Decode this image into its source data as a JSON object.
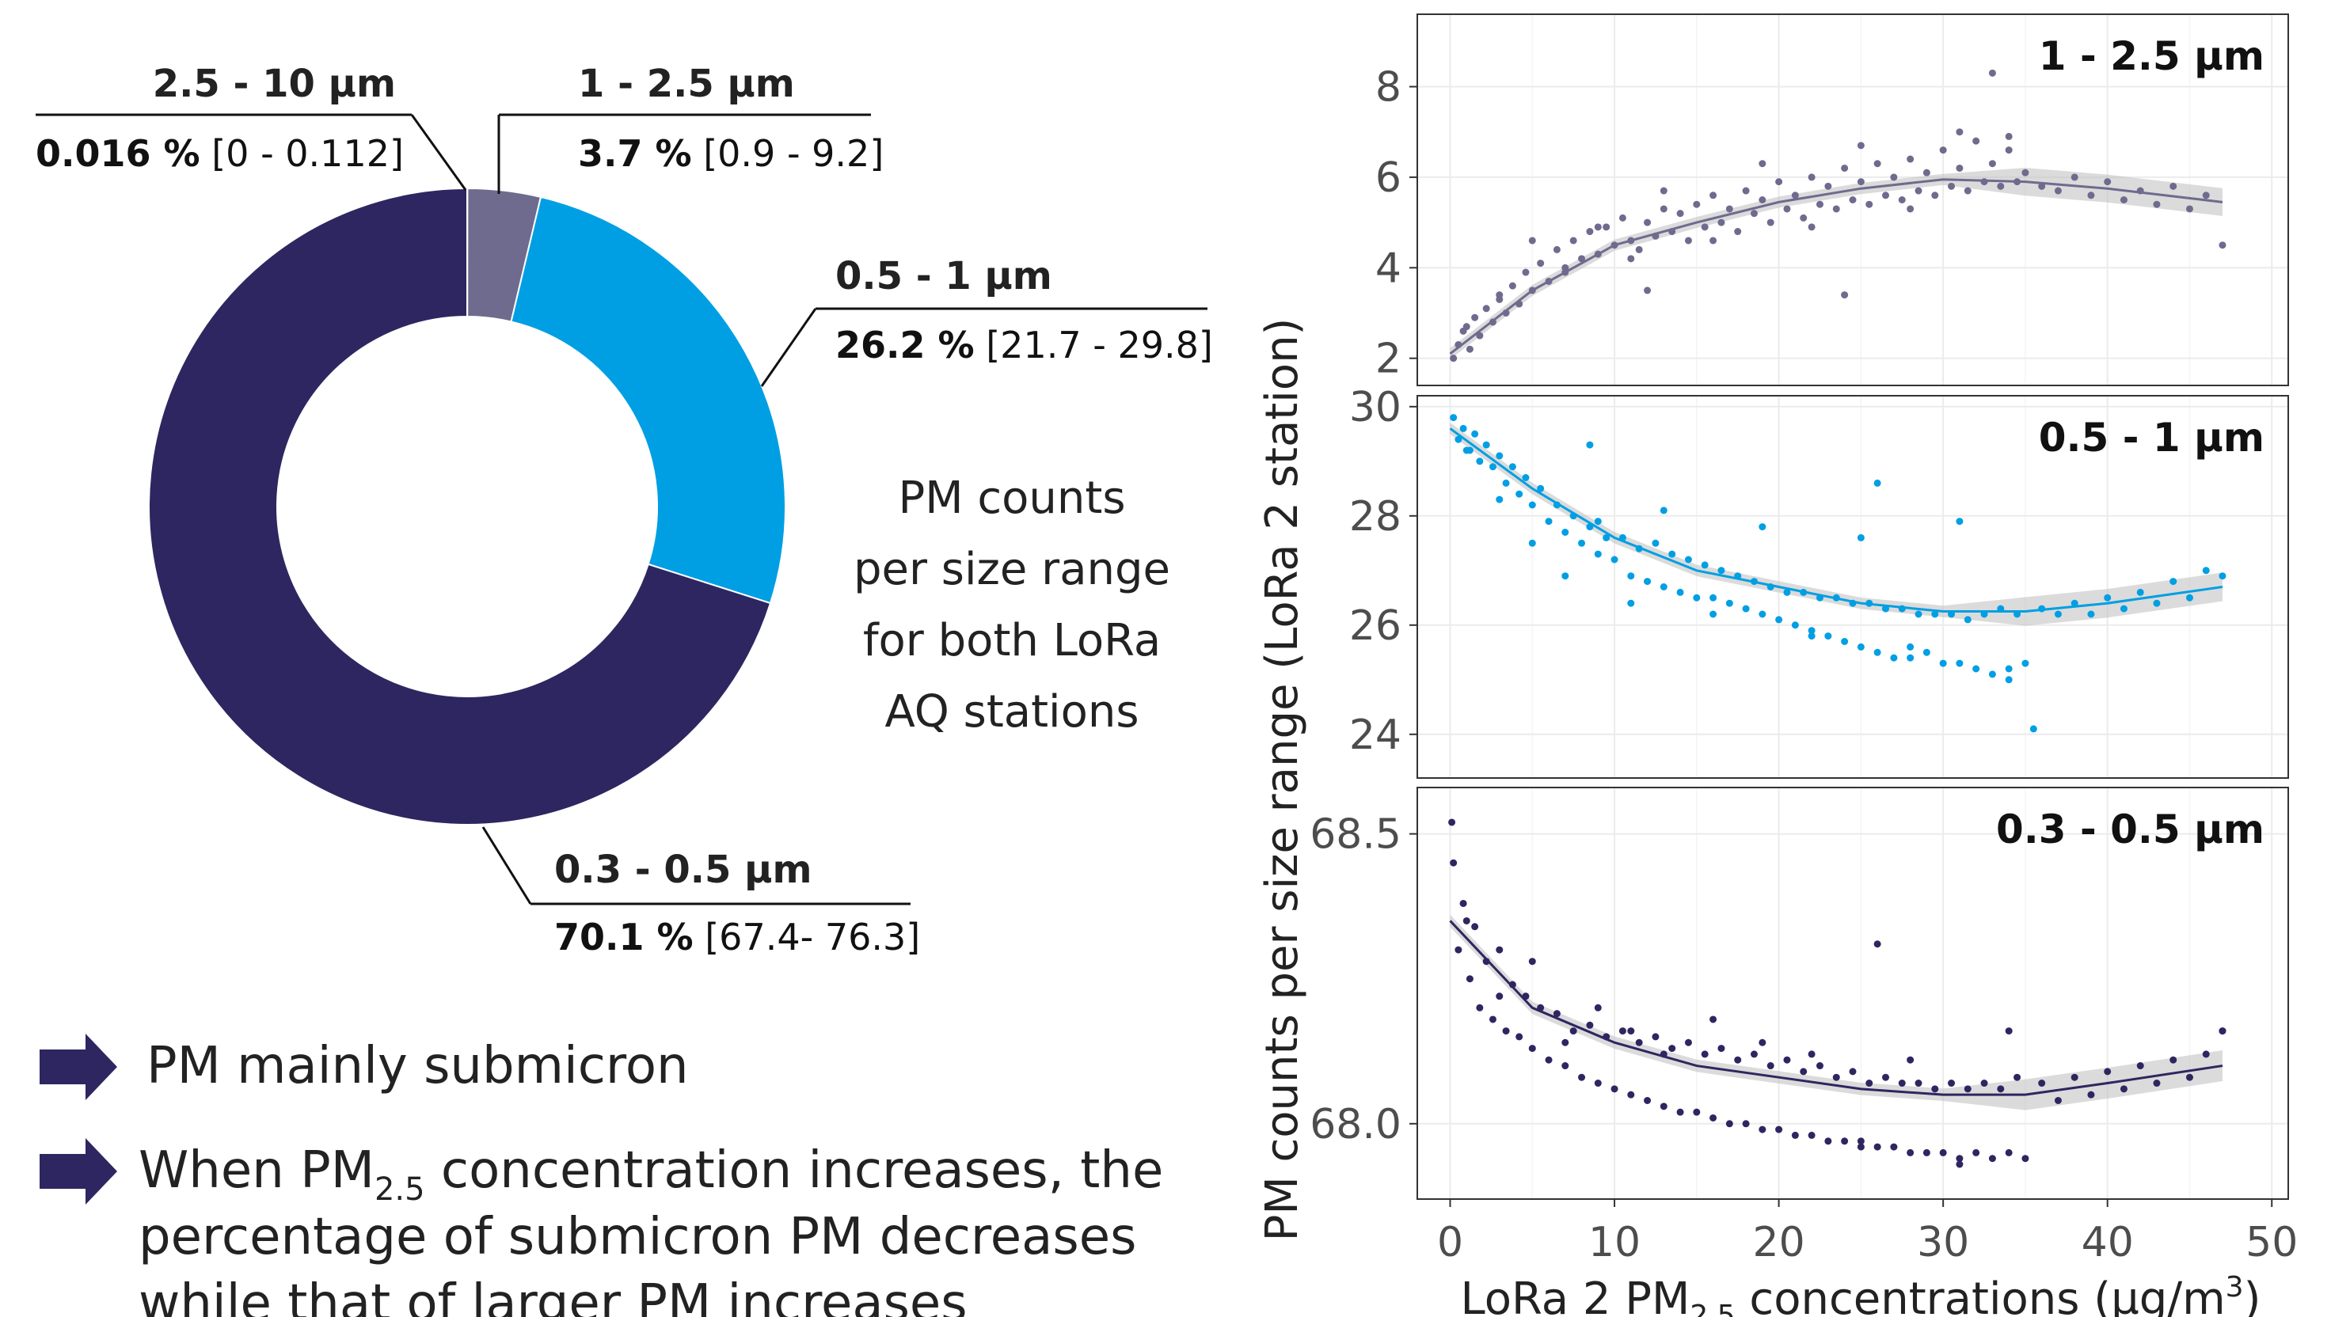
{
  "donut": {
    "segments": [
      {
        "label": "0.3 - 0.5 µm",
        "value": 70.1,
        "value_text": "70.1",
        "range": "[67.4- 76.3]",
        "color": "#2e2660"
      },
      {
        "label": "2.5 - 10 µm",
        "value": 0.016,
        "value_text": "0.016",
        "range": "[0 - 0.112]",
        "color": "#d9d9d9"
      },
      {
        "label": "1 - 2.5 µm",
        "value": 3.7,
        "value_text": "3.7",
        "range": "[0.9 - 9.2]",
        "color": "#6e6b8e"
      },
      {
        "label": "0.5 - 1 µm",
        "value": 26.2,
        "value_text": "26.2",
        "range": "[21.7 - 29.8]",
        "color": "#009fe3"
      }
    ],
    "percent_sign": "%",
    "center_text": [
      "PM counts",
      "per size range",
      "for both LoRa",
      "AQ stations"
    ]
  },
  "bullets": [
    {
      "lines": [
        [
          "PM mainly submicron"
        ]
      ]
    },
    {
      "lines": [
        [
          "When PM",
          "2.5",
          " concentration increases, the"
        ],
        [
          "percentage of submicron PM decreases"
        ],
        [
          "while that of larger PM increases"
        ]
      ]
    }
  ],
  "chart_data": {
    "type": "scatter",
    "ylabel": "PM counts per size range (LoRa 2 station)",
    "xlabel_parts": [
      "LoRa 2 PM",
      "2.5",
      " concentrations (µg/m",
      "3",
      ")"
    ],
    "xlim": [
      -2,
      51
    ],
    "xticks": [
      0,
      10,
      20,
      30,
      40,
      50
    ],
    "xtick_labels": [
      "0",
      "10",
      "20",
      "30",
      "40",
      "50"
    ],
    "grid": true,
    "panels": [
      {
        "title": "1 - 2.5 µm",
        "color": "#6e6b8e",
        "ylim": [
          1.4,
          9.6
        ],
        "yticks": [
          2,
          4,
          6,
          8
        ],
        "ytick_labels": [
          "2",
          "4",
          "6",
          "8"
        ],
        "trend_x": [
          0,
          5,
          10,
          15,
          20,
          25,
          30,
          35,
          40,
          47
        ],
        "trend_y": [
          2.1,
          3.5,
          4.5,
          5.0,
          5.45,
          5.75,
          5.95,
          5.9,
          5.75,
          5.45
        ],
        "points_x": [
          0.2,
          0.5,
          0.8,
          1.2,
          1.5,
          1.8,
          2.2,
          2.6,
          3.0,
          3.4,
          3.8,
          4.2,
          4.6,
          5.0,
          5.5,
          6.0,
          6.5,
          7.0,
          7.5,
          8.0,
          8.5,
          9.0,
          9.5,
          10.0,
          10.5,
          11.0,
          11.5,
          12.0,
          12.5,
          13.0,
          13.5,
          14.0,
          14.5,
          15.0,
          15.5,
          16.0,
          16.5,
          17.0,
          17.5,
          18.0,
          18.5,
          19.0,
          19.5,
          20.0,
          20.5,
          21.0,
          21.5,
          22.0,
          22.5,
          23.0,
          23.5,
          24.0,
          24.5,
          25.0,
          25.5,
          26.0,
          26.5,
          27.0,
          27.5,
          28.0,
          28.5,
          29.0,
          29.5,
          30.0,
          30.5,
          31.0,
          31.5,
          32.0,
          32.5,
          33.0,
          33.5,
          34.0,
          34.5,
          35.0,
          36.0,
          37.0,
          38.0,
          39.0,
          40.0,
          41.0,
          42.0,
          43.0,
          44.0,
          45.0,
          46.0,
          47.0,
          1.0,
          3.0,
          5.0,
          7.0,
          9.0,
          11.0,
          13.0,
          16.0,
          19.0,
          22.0,
          25.0,
          28.0,
          31.0,
          34.0,
          12.0,
          24.0,
          33.0
        ],
        "points_y": [
          2.0,
          2.3,
          2.6,
          2.2,
          2.9,
          2.5,
          3.1,
          2.8,
          3.3,
          3.0,
          3.6,
          3.2,
          3.9,
          3.5,
          4.1,
          3.7,
          4.4,
          4.0,
          4.6,
          4.2,
          4.8,
          4.3,
          4.9,
          4.5,
          5.1,
          4.6,
          4.4,
          5.0,
          4.7,
          5.3,
          4.8,
          5.2,
          4.6,
          5.4,
          4.9,
          5.6,
          5.0,
          5.3,
          4.8,
          5.7,
          5.2,
          5.5,
          5.0,
          5.9,
          5.3,
          5.6,
          5.1,
          6.0,
          5.4,
          5.8,
          5.3,
          6.2,
          5.5,
          5.9,
          5.4,
          6.3,
          5.6,
          6.0,
          5.5,
          6.4,
          5.7,
          6.1,
          5.6,
          6.6,
          5.8,
          6.2,
          5.7,
          6.8,
          5.9,
          6.3,
          5.8,
          6.9,
          5.9,
          6.1,
          5.8,
          5.7,
          6.0,
          5.6,
          5.9,
          5.5,
          5.7,
          5.4,
          5.8,
          5.3,
          5.6,
          4.5,
          2.7,
          3.4,
          4.6,
          3.9,
          4.9,
          4.2,
          5.7,
          4.6,
          6.3,
          4.9,
          6.7,
          5.3,
          7.0,
          6.6,
          3.5,
          3.4,
          8.3
        ]
      },
      {
        "title": "0.5 - 1 µm",
        "color": "#009fe3",
        "ylim": [
          23.2,
          30.2
        ],
        "yticks": [
          24,
          26,
          28,
          30
        ],
        "ytick_labels": [
          "24",
          "26",
          "28",
          "30"
        ],
        "trend_x": [
          0,
          5,
          10,
          15,
          20,
          25,
          30,
          35,
          40,
          47
        ],
        "trend_y": [
          29.6,
          28.5,
          27.6,
          27.0,
          26.7,
          26.4,
          26.25,
          26.25,
          26.4,
          26.7
        ],
        "points_x": [
          0.2,
          0.5,
          0.8,
          1.2,
          1.5,
          1.8,
          2.2,
          2.6,
          3.0,
          3.4,
          3.8,
          4.2,
          4.6,
          5.0,
          5.5,
          6.0,
          6.5,
          7.0,
          7.5,
          8.0,
          8.5,
          9.0,
          9.5,
          10.0,
          10.5,
          11.0,
          11.5,
          12.0,
          12.5,
          13.0,
          13.5,
          14.0,
          14.5,
          15.0,
          15.5,
          16.0,
          16.5,
          17.0,
          17.5,
          18.0,
          18.5,
          19.0,
          19.5,
          20.0,
          20.5,
          21.0,
          21.5,
          22.0,
          22.5,
          23.0,
          23.5,
          24.0,
          24.5,
          25.0,
          25.5,
          26.0,
          26.5,
          27.0,
          27.5,
          28.0,
          28.5,
          29.0,
          29.5,
          30.0,
          30.5,
          31.0,
          31.5,
          32.0,
          32.5,
          33.0,
          33.5,
          34.0,
          34.5,
          35.0,
          36.0,
          37.0,
          38.0,
          39.0,
          40.0,
          41.0,
          42.0,
          43.0,
          44.0,
          45.0,
          46.0,
          47.0,
          1.0,
          3.0,
          5.0,
          7.0,
          9.0,
          11.0,
          13.0,
          16.0,
          19.0,
          22.0,
          25.0,
          28.0,
          31.0,
          34.0,
          35.5,
          8.5,
          26.0
        ],
        "points_y": [
          29.8,
          29.4,
          29.6,
          29.2,
          29.5,
          29.0,
          29.3,
          28.9,
          29.1,
          28.6,
          28.9,
          28.4,
          28.7,
          28.2,
          28.5,
          27.9,
          28.2,
          27.7,
          28.0,
          27.5,
          27.8,
          27.3,
          27.6,
          27.2,
          27.6,
          26.9,
          27.4,
          26.8,
          27.5,
          26.7,
          27.3,
          26.6,
          27.2,
          26.5,
          27.1,
          26.5,
          27.0,
          26.4,
          26.9,
          26.3,
          26.8,
          26.2,
          26.7,
          26.1,
          26.6,
          26.0,
          26.6,
          25.9,
          26.5,
          25.8,
          26.5,
          25.7,
          26.4,
          25.6,
          26.4,
          25.5,
          26.3,
          25.4,
          26.3,
          25.4,
          26.2,
          25.5,
          26.2,
          25.3,
          26.2,
          25.3,
          26.1,
          25.2,
          26.2,
          25.1,
          26.3,
          25.0,
          26.2,
          25.3,
          26.3,
          26.2,
          26.4,
          26.2,
          26.5,
          26.3,
          26.6,
          26.4,
          26.8,
          26.5,
          27.0,
          26.9,
          29.2,
          28.3,
          27.5,
          26.9,
          27.9,
          26.4,
          28.1,
          26.2,
          27.8,
          25.8,
          27.6,
          25.6,
          27.9,
          25.2,
          24.1,
          29.3,
          28.6
        ]
      },
      {
        "title": "0.3 - 0.5 µm",
        "color": "#2e2660",
        "ylim": [
          67.87,
          68.58
        ],
        "yticks": [
          68.0,
          68.5
        ],
        "ytick_labels": [
          "68.0",
          "68.5"
        ],
        "trend_x": [
          0,
          5,
          10,
          15,
          20,
          25,
          30,
          35,
          40,
          47
        ],
        "trend_y": [
          68.35,
          68.2,
          68.14,
          68.1,
          68.08,
          68.06,
          68.05,
          68.05,
          68.07,
          68.1
        ],
        "points_x": [
          0.2,
          0.5,
          0.8,
          1.2,
          1.5,
          1.8,
          2.2,
          2.6,
          3.0,
          3.4,
          3.8,
          4.2,
          4.6,
          5.0,
          5.5,
          6.0,
          6.5,
          7.0,
          7.5,
          8.0,
          8.5,
          9.0,
          9.5,
          10.0,
          10.5,
          11.0,
          11.5,
          12.0,
          12.5,
          13.0,
          13.5,
          14.0,
          14.5,
          15.0,
          15.5,
          16.0,
          16.5,
          17.0,
          17.5,
          18.0,
          18.5,
          19.0,
          19.5,
          20.0,
          20.5,
          21.0,
          21.5,
          22.0,
          22.5,
          23.0,
          23.5,
          24.0,
          24.5,
          25.0,
          25.5,
          26.0,
          26.5,
          27.0,
          27.5,
          28.0,
          28.5,
          29.0,
          29.5,
          30.0,
          30.5,
          31.0,
          31.5,
          32.0,
          32.5,
          33.0,
          33.5,
          34.0,
          34.5,
          35.0,
          36.0,
          37.0,
          38.0,
          39.0,
          40.0,
          41.0,
          42.0,
          43.0,
          44.0,
          45.0,
          46.0,
          47.0,
          1.0,
          3.0,
          5.0,
          7.0,
          9.0,
          11.0,
          13.0,
          16.0,
          19.0,
          22.0,
          25.0,
          28.0,
          31.0,
          34.0,
          0.1,
          26.0,
          47.0
        ],
        "points_y": [
          68.45,
          68.3,
          68.38,
          68.25,
          68.34,
          68.2,
          68.28,
          68.18,
          68.3,
          68.16,
          68.24,
          68.15,
          68.22,
          68.13,
          68.2,
          68.11,
          68.19,
          68.1,
          68.16,
          68.08,
          68.17,
          68.07,
          68.15,
          68.06,
          68.16,
          68.05,
          68.14,
          68.04,
          68.15,
          68.03,
          68.13,
          68.02,
          68.14,
          68.02,
          68.12,
          68.01,
          68.13,
          68.0,
          68.11,
          68.0,
          68.12,
          67.99,
          68.1,
          67.99,
          68.11,
          67.98,
          68.09,
          67.98,
          68.1,
          67.97,
          68.08,
          67.97,
          68.09,
          67.96,
          68.07,
          67.96,
          68.08,
          67.96,
          68.07,
          67.95,
          68.07,
          67.95,
          68.06,
          67.95,
          68.07,
          67.94,
          68.06,
          67.95,
          68.07,
          67.94,
          68.06,
          67.95,
          68.08,
          67.94,
          68.07,
          68.04,
          68.08,
          68.05,
          68.09,
          68.06,
          68.1,
          68.07,
          68.11,
          68.08,
          68.12,
          68.16,
          68.35,
          68.22,
          68.28,
          68.14,
          68.2,
          68.16,
          68.12,
          68.18,
          68.14,
          68.12,
          67.97,
          68.11,
          67.93,
          68.16,
          68.52,
          68.31,
          68.16
        ]
      }
    ]
  }
}
